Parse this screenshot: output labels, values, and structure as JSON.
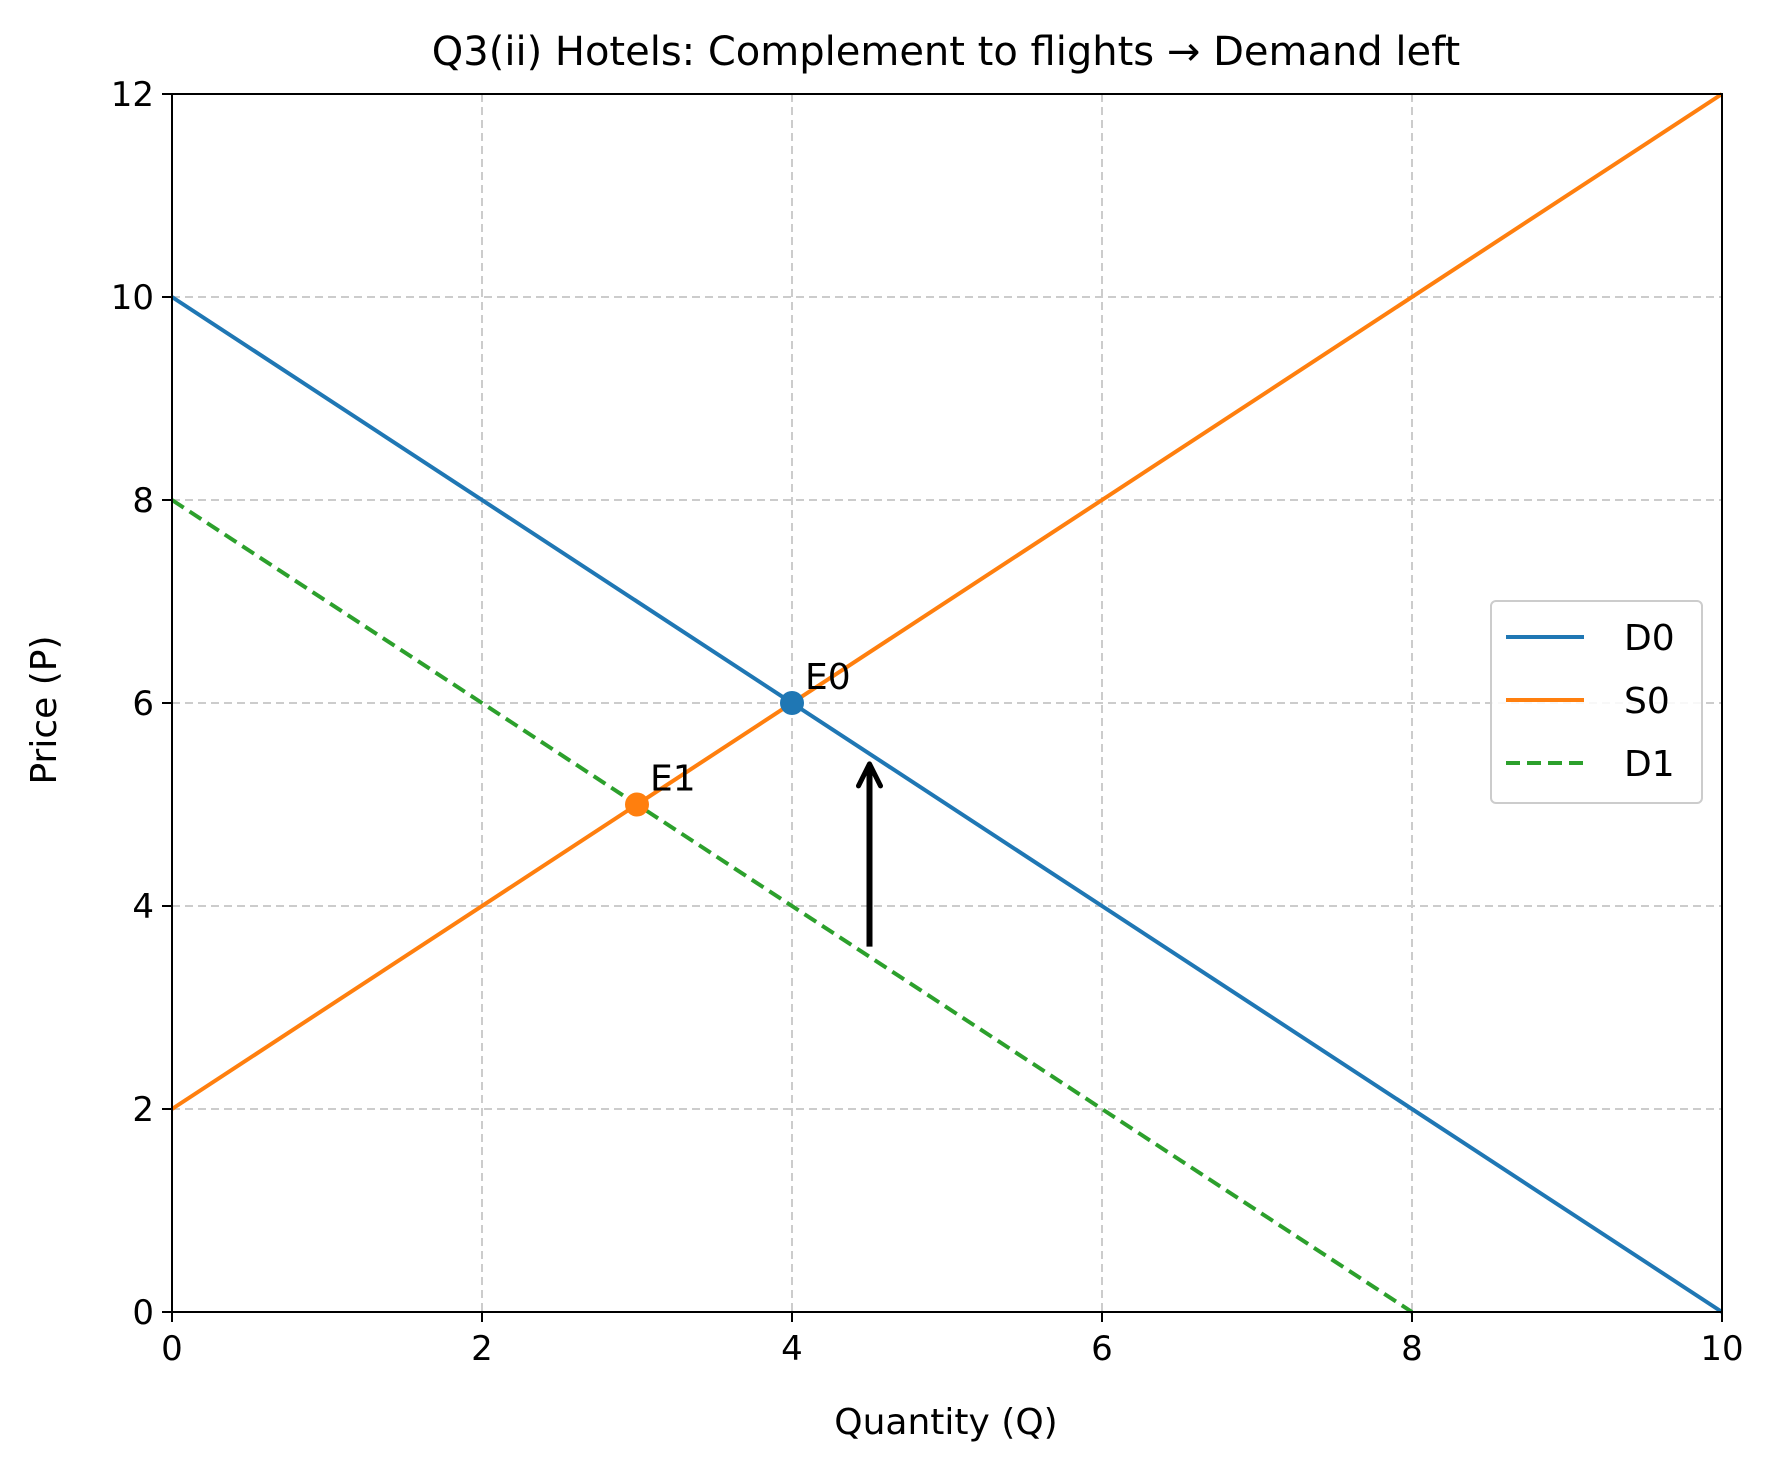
{
  "chart_data": {
    "type": "line",
    "title": "Q3(ii) Hotels: Complement to flights → Demand left",
    "xlabel": "Quantity (Q)",
    "ylabel": "Price (P)",
    "xlim": [
      0,
      10
    ],
    "ylim": [
      0,
      12
    ],
    "xticks": [
      0,
      2,
      4,
      6,
      8,
      10
    ],
    "yticks": [
      0,
      2,
      4,
      6,
      8,
      10,
      12
    ],
    "grid": true,
    "legend_position": "center-right",
    "series": [
      {
        "name": "D0",
        "color": "#1f77b4",
        "style": "solid",
        "x": [
          0,
          10
        ],
        "y": [
          10,
          0
        ]
      },
      {
        "name": "S0",
        "color": "#ff7f0e",
        "style": "solid",
        "x": [
          0,
          10
        ],
        "y": [
          2,
          12
        ]
      },
      {
        "name": "D1",
        "color": "#2ca02c",
        "style": "dashed",
        "x": [
          0,
          8
        ],
        "y": [
          8,
          0
        ]
      }
    ],
    "points": [
      {
        "label": "E0",
        "x": 4,
        "y": 6,
        "color": "#1f77b4"
      },
      {
        "label": "E1",
        "x": 3,
        "y": 5,
        "color": "#ff7f0e"
      }
    ],
    "arrow": {
      "x": 4.5,
      "y_from": 3.6,
      "y_to": 5.4,
      "color": "#000000"
    }
  }
}
